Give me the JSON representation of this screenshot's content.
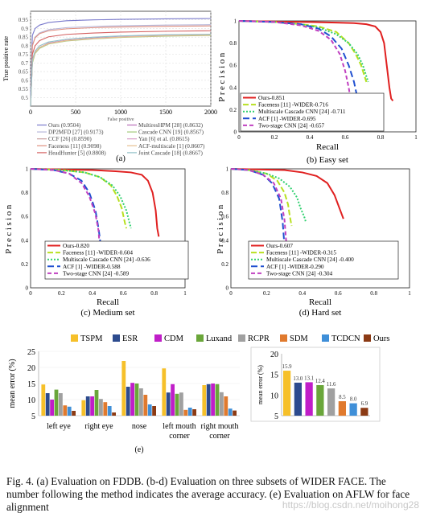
{
  "figure_caption": "Fig. 4.  (a) Evaluation on FDDB. (b-d) Evaluation on three subsets of WIDER FACE. The number following the method indicates the average accuracy. (e) Evaluation on AFLW for face alignment",
  "watermark": "https://blog.csdn.net/moihong28",
  "chart_data": [
    {
      "id": "a",
      "type": "line",
      "sublabel": "(a)",
      "xlabel": "False positive",
      "ylabel": "True positive rate",
      "xlim": [
        0,
        2000
      ],
      "ylim": [
        0,
        1
      ],
      "xticks": [
        0,
        500,
        1000,
        1500,
        2000
      ],
      "yticks": [
        0.95,
        0.9,
        0.85,
        0.8,
        0.75,
        0.7,
        0.65,
        0.6,
        0.55,
        0.5
      ],
      "grid": true,
      "legend_position": "bottom",
      "x": [
        0,
        20,
        50,
        100,
        200,
        400,
        700,
        1000,
        1500,
        2000
      ],
      "series": [
        {
          "name": "Ours (0.9504)",
          "color": "#7a7acc",
          "values": [
            0.5,
            0.86,
            0.9,
            0.92,
            0.935,
            0.945,
            0.95,
            0.953,
            0.956,
            0.958
          ]
        },
        {
          "name": "DP2MFD [27] (0.9173)",
          "color": "#b5b5d8",
          "values": [
            0.45,
            0.8,
            0.85,
            0.875,
            0.893,
            0.905,
            0.912,
            0.916,
            0.92,
            0.922
          ]
        },
        {
          "name": "CCF [26] (0.8590)",
          "color": "#c8a0a0",
          "values": [
            0.4,
            0.7,
            0.76,
            0.79,
            0.815,
            0.832,
            0.843,
            0.85,
            0.858,
            0.862
          ]
        },
        {
          "name": "Faceness [11] (0.9098)",
          "color": "#e09080",
          "values": [
            0.45,
            0.8,
            0.846,
            0.87,
            0.887,
            0.898,
            0.905,
            0.909,
            0.913,
            0.915
          ]
        },
        {
          "name": "HeadHunter [5] (0.8808)",
          "color": "#d46060",
          "values": [
            0.42,
            0.75,
            0.8,
            0.83,
            0.852,
            0.866,
            0.874,
            0.879,
            0.884,
            0.887
          ]
        },
        {
          "name": "MultiresHPM [28] (0.8632)",
          "color": "#b86fb8",
          "values": [
            0.4,
            0.71,
            0.76,
            0.79,
            0.815,
            0.832,
            0.845,
            0.852,
            0.86,
            0.864
          ]
        },
        {
          "name": "Cascade CNN [19] (0.8567)",
          "color": "#a0c878",
          "values": [
            0.4,
            0.7,
            0.755,
            0.785,
            0.81,
            0.828,
            0.84,
            0.848,
            0.856,
            0.86
          ]
        },
        {
          "name": "Yan [6] et al. (0.8615)",
          "color": "#d8a0c8",
          "values": [
            0.4,
            0.71,
            0.76,
            0.79,
            0.813,
            0.831,
            0.843,
            0.851,
            0.859,
            0.863
          ]
        },
        {
          "name": "ACF-multiscale [1] (0.8607)",
          "color": "#e8c090",
          "values": [
            0.4,
            0.71,
            0.76,
            0.79,
            0.812,
            0.83,
            0.842,
            0.85,
            0.858,
            0.862
          ]
        },
        {
          "name": "Joint Cascade [18] (0.8667)",
          "color": "#90c0c8",
          "values": [
            0.41,
            0.72,
            0.77,
            0.8,
            0.822,
            0.838,
            0.85,
            0.857,
            0.864,
            0.867
          ]
        }
      ]
    },
    {
      "id": "b",
      "type": "line",
      "sublabel": "(b) Easy set",
      "xlabel": "Recall",
      "ylabel": "Precision",
      "xlim": [
        0,
        1
      ],
      "ylim": [
        0,
        1
      ],
      "xticks": [
        "0",
        "0.2",
        "0.4",
        "0.6",
        "0.8",
        "1"
      ],
      "yticks": [
        "0",
        "0.2",
        "0.4",
        "0.6",
        "0.8",
        "1"
      ],
      "legend_position": "bottom-left",
      "series": [
        {
          "name": "Ours-0.851",
          "color": "#e02020",
          "dash": "",
          "x": [
            0,
            0.2,
            0.4,
            0.55,
            0.65,
            0.72,
            0.77,
            0.8,
            0.82,
            0.835,
            0.85,
            0.86,
            0.87
          ],
          "y": [
            1,
            0.995,
            0.99,
            0.985,
            0.98,
            0.97,
            0.95,
            0.9,
            0.8,
            0.6,
            0.4,
            0.3,
            0.28
          ]
        },
        {
          "name": "Faceness [11] -WIDER-0.716",
          "color": "#b8e020",
          "dash": "7 3",
          "x": [
            0,
            0.2,
            0.35,
            0.45,
            0.55,
            0.62,
            0.66,
            0.69,
            0.71,
            0.72
          ],
          "y": [
            1,
            0.99,
            0.97,
            0.95,
            0.9,
            0.8,
            0.7,
            0.6,
            0.5,
            0.45
          ]
        },
        {
          "name": "Multiscale Cascade CNN [24] -0.711",
          "color": "#30d070",
          "dash": "2 2",
          "x": [
            0,
            0.2,
            0.35,
            0.45,
            0.55,
            0.62,
            0.67,
            0.7,
            0.72,
            0.73
          ],
          "y": [
            1,
            0.99,
            0.97,
            0.94,
            0.88,
            0.8,
            0.7,
            0.6,
            0.5,
            0.45
          ]
        },
        {
          "name": "ACF [1] -WIDER-0.695",
          "color": "#2050d0",
          "dash": "8 4",
          "x": [
            0,
            0.2,
            0.35,
            0.45,
            0.52,
            0.58,
            0.62,
            0.65,
            0.67,
            0.69
          ],
          "y": [
            1,
            0.99,
            0.97,
            0.93,
            0.86,
            0.75,
            0.6,
            0.45,
            0.3,
            0.2
          ]
        },
        {
          "name": "Two-stage CNN [24] -0.657",
          "color": "#c040c0",
          "dash": "5 3",
          "x": [
            0,
            0.2,
            0.35,
            0.45,
            0.52,
            0.57,
            0.6,
            0.62,
            0.63,
            0.64
          ],
          "y": [
            1,
            0.99,
            0.96,
            0.91,
            0.83,
            0.7,
            0.55,
            0.4,
            0.3,
            0.2
          ]
        }
      ]
    },
    {
      "id": "c",
      "type": "line",
      "sublabel": "(c) Medium set",
      "xlabel": "Recall",
      "ylabel": "Precision",
      "xlim": [
        0,
        1
      ],
      "ylim": [
        0,
        1
      ],
      "xticks": [
        "0",
        "0.2",
        "0.4",
        "0.6",
        "0.8",
        "1"
      ],
      "yticks": [
        "0",
        "0.2",
        "0.4",
        "0.6",
        "0.8",
        "1"
      ],
      "legend_position": "bottom-left",
      "series": [
        {
          "name": "Ours-0.820",
          "color": "#e02020",
          "dash": "",
          "x": [
            0,
            0.2,
            0.4,
            0.55,
            0.65,
            0.72,
            0.76,
            0.79,
            0.81,
            0.82,
            0.83
          ],
          "y": [
            1,
            0.995,
            0.99,
            0.98,
            0.97,
            0.95,
            0.9,
            0.8,
            0.65,
            0.5,
            0.43
          ]
        },
        {
          "name": "Faceness [11] -WIDER-0.604",
          "color": "#b8e020",
          "dash": "7 3",
          "x": [
            0,
            0.2,
            0.35,
            0.45,
            0.52,
            0.56,
            0.59,
            0.61,
            0.62
          ],
          "y": [
            1,
            0.99,
            0.97,
            0.93,
            0.86,
            0.77,
            0.67,
            0.55,
            0.5
          ]
        },
        {
          "name": "Multiscale Cascade CNN [24] -0.636",
          "color": "#30d070",
          "dash": "2 2",
          "x": [
            0,
            0.2,
            0.35,
            0.45,
            0.53,
            0.58,
            0.62,
            0.64,
            0.65
          ],
          "y": [
            1,
            0.99,
            0.97,
            0.93,
            0.86,
            0.77,
            0.65,
            0.55,
            0.5
          ]
        },
        {
          "name": "ACF [1] -WIDER-0.588",
          "color": "#2050d0",
          "dash": "8 4",
          "x": [
            0,
            0.15,
            0.25,
            0.33,
            0.38,
            0.42,
            0.44,
            0.46,
            0.47
          ],
          "y": [
            1,
            0.99,
            0.96,
            0.9,
            0.8,
            0.65,
            0.5,
            0.3,
            0.2
          ]
        },
        {
          "name": "Two-stage CNN [24] -0.589",
          "color": "#c040c0",
          "dash": "5 3",
          "x": [
            0,
            0.15,
            0.25,
            0.33,
            0.38,
            0.42,
            0.44,
            0.45,
            0.46
          ],
          "y": [
            1,
            0.99,
            0.96,
            0.88,
            0.77,
            0.62,
            0.48,
            0.3,
            0.2
          ]
        }
      ]
    },
    {
      "id": "d",
      "type": "line",
      "sublabel": "(d) Hard set",
      "xlabel": "Recall",
      "ylabel": "Precision",
      "xlim": [
        0,
        1
      ],
      "ylim": [
        0,
        1
      ],
      "xticks": [
        "0",
        "0.2",
        "0.4",
        "0.6",
        "0.8",
        "1"
      ],
      "yticks": [
        "0",
        "0.2",
        "0.4",
        "0.6",
        "0.8",
        "1"
      ],
      "legend_position": "bottom-left",
      "series": [
        {
          "name": "Ours-0.607",
          "color": "#e02020",
          "dash": "",
          "x": [
            0,
            0.15,
            0.3,
            0.4,
            0.48,
            0.54,
            0.58,
            0.61,
            0.63
          ],
          "y": [
            1,
            0.995,
            0.99,
            0.97,
            0.94,
            0.88,
            0.78,
            0.66,
            0.58
          ]
        },
        {
          "name": "Faceness [11] -WIDER-0.315",
          "color": "#b8e020",
          "dash": "7 3",
          "x": [
            0,
            0.1,
            0.2,
            0.26,
            0.3,
            0.32,
            0.33,
            0.34
          ],
          "y": [
            1,
            0.99,
            0.96,
            0.9,
            0.8,
            0.7,
            0.6,
            0.52
          ]
        },
        {
          "name": "Multiscale Cascade CNN [24] -0.400",
          "color": "#30d070",
          "dash": "2 2",
          "x": [
            0,
            0.1,
            0.2,
            0.27,
            0.33,
            0.37,
            0.39,
            0.41,
            0.42
          ],
          "y": [
            1,
            0.99,
            0.96,
            0.92,
            0.85,
            0.76,
            0.67,
            0.6,
            0.55
          ]
        },
        {
          "name": "ACF [1] -WIDER-0.290",
          "color": "#2050d0",
          "dash": "8 4",
          "x": [
            0,
            0.1,
            0.18,
            0.23,
            0.27,
            0.29,
            0.3,
            0.31
          ],
          "y": [
            1,
            0.99,
            0.95,
            0.88,
            0.75,
            0.55,
            0.35,
            0.2
          ]
        },
        {
          "name": "Two-stage CNN [24] -0.304",
          "color": "#c040c0",
          "dash": "5 3",
          "x": [
            0,
            0.1,
            0.18,
            0.24,
            0.28,
            0.3,
            0.31,
            0.32
          ],
          "y": [
            1,
            0.99,
            0.95,
            0.88,
            0.75,
            0.57,
            0.38,
            0.2
          ]
        }
      ]
    },
    {
      "id": "e-left",
      "type": "bar",
      "sublabel": "(e)",
      "ylabel": "mean error (%)",
      "ylim": [
        5,
        25
      ],
      "yticks": [
        25,
        20,
        15,
        10,
        5
      ],
      "categories": [
        "left eye",
        "right eye",
        "nose",
        "left mouth corner",
        "right mouth corner"
      ],
      "category_lines": [
        [
          "left eye"
        ],
        [
          "right eye"
        ],
        [
          "nose"
        ],
        [
          "left mouth",
          "corner"
        ],
        [
          "right mouth",
          "corner"
        ]
      ],
      "series": [
        {
          "name": "TSPM",
          "color": "#f6c02a",
          "values": [
            14.7,
            9.8,
            22.0,
            19.7,
            14.5
          ]
        },
        {
          "name": "ESR",
          "color": "#2d4b8e",
          "values": [
            12.0,
            11.0,
            14.0,
            12.2,
            14.8
          ]
        },
        {
          "name": "CDM",
          "color": "#c01ec8",
          "values": [
            10.0,
            11.0,
            15.2,
            14.8,
            15.0
          ]
        },
        {
          "name": "Luxand",
          "color": "#6aa63a",
          "values": [
            13.1,
            13.0,
            15.0,
            11.8,
            14.8
          ]
        },
        {
          "name": "RCPR",
          "color": "#a0a0a0",
          "values": [
            12.0,
            10.2,
            13.5,
            12.2,
            12.3
          ]
        },
        {
          "name": "SDM",
          "color": "#e07a2e",
          "values": [
            8.2,
            9.2,
            11.5,
            6.8,
            11.0
          ]
        },
        {
          "name": "TCDCN",
          "color": "#3f8fd8",
          "values": [
            7.8,
            8.0,
            8.5,
            7.5,
            7.2
          ]
        },
        {
          "name": "Ours",
          "color": "#8b3a14",
          "values": [
            6.5,
            6.0,
            8.0,
            7.0,
            6.6
          ]
        }
      ]
    },
    {
      "id": "e-right",
      "type": "bar",
      "ylabel": "mean error (%)",
      "ylim": [
        5,
        20
      ],
      "yticks": [
        20,
        15,
        10,
        5
      ],
      "categories": [
        "TSPM",
        "ESR",
        "CDM",
        "Luxand",
        "RCPR",
        "SDM",
        "TCDCN",
        "Ours"
      ],
      "values": [
        15.9,
        13.0,
        13.1,
        12.4,
        11.6,
        8.5,
        8.0,
        6.9
      ],
      "value_labels": [
        "15.9",
        "13.0",
        "13.1",
        "12.4",
        "11.6",
        "8.5",
        "8.0",
        "6.9"
      ],
      "colors": [
        "#f6c02a",
        "#2d4b8e",
        "#c01ec8",
        "#6aa63a",
        "#a0a0a0",
        "#e07a2e",
        "#3f8fd8",
        "#8b3a14"
      ]
    }
  ]
}
